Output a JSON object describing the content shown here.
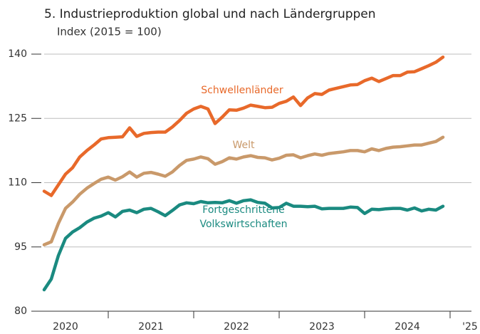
{
  "chart_data": {
    "type": "line",
    "title": "5. Industrieproduktion global und nach Ländergruppen",
    "subtitle": "Index (2015 = 100)",
    "x_start": 2020.25,
    "x_step_months": 1,
    "xlim": [
      2020.25,
      2025.25
    ],
    "xticks": [
      2021,
      2022,
      2023,
      2024,
      2025
    ],
    "year_labels": [
      "2020",
      "2021",
      "2022",
      "2023",
      "2024",
      "'25"
    ],
    "ylim": [
      80,
      140
    ],
    "yticks": [
      80,
      95,
      110,
      125,
      140
    ],
    "grid": true,
    "series": [
      {
        "name": "Schwellenländer",
        "color": "#e8692a",
        "values": [
          108,
          107,
          109.5,
          112,
          113.5,
          116,
          117.5,
          118.8,
          120.2,
          120.5,
          120.6,
          120.7,
          122.8,
          120.8,
          121.5,
          121.7,
          121.8,
          121.8,
          123,
          124.5,
          126.2,
          127.2,
          127.8,
          127.2,
          123.8,
          125.3,
          127,
          126.9,
          127.4,
          128.1,
          127.8,
          127.5,
          127.6,
          128.5,
          129,
          130,
          128,
          129.8,
          130.8,
          130.6,
          131.6,
          132,
          132.4,
          132.8,
          132.9,
          133.8,
          134.4,
          133.6,
          134.3,
          135,
          135,
          135.8,
          135.9,
          136.6,
          137.3,
          138.1,
          139.3
        ]
      },
      {
        "name": "Welt",
        "color": "#c9996a",
        "values": [
          95.5,
          96.2,
          100.5,
          104,
          105.5,
          107.3,
          108.7,
          109.8,
          110.8,
          111.3,
          110.6,
          111.4,
          112.5,
          111.3,
          112.2,
          112.4,
          112,
          111.5,
          112.5,
          114,
          115.2,
          115.5,
          116,
          115.6,
          114.3,
          114.9,
          115.8,
          115.5,
          116,
          116.3,
          115.9,
          115.8,
          115.3,
          115.7,
          116.4,
          116.5,
          115.8,
          116.3,
          116.7,
          116.4,
          116.8,
          117,
          117.2,
          117.5,
          117.5,
          117.2,
          117.9,
          117.5,
          118,
          118.3,
          118.4,
          118.6,
          118.8,
          118.8,
          119.2,
          119.6,
          120.6
        ]
      },
      {
        "name": "Fortgeschrittene Volkswirtschaften",
        "color": "#1a8a80",
        "values": [
          85,
          87.5,
          93,
          97,
          98.5,
          99.5,
          100.8,
          101.7,
          102.2,
          103,
          102,
          103.3,
          103.6,
          103,
          103.8,
          104,
          103.2,
          102.3,
          103.5,
          104.8,
          105.3,
          105.1,
          105.6,
          105.3,
          105.4,
          105.3,
          105.8,
          105.2,
          105.8,
          106,
          105.4,
          105.2,
          104.1,
          104.2,
          105.2,
          104.5,
          104.5,
          104.4,
          104.5,
          103.9,
          104,
          104,
          104,
          104.3,
          104.2,
          102.8,
          103.8,
          103.7,
          103.9,
          104,
          104,
          103.6,
          104.1,
          103.4,
          103.8,
          103.6,
          104.5
        ]
      }
    ]
  }
}
